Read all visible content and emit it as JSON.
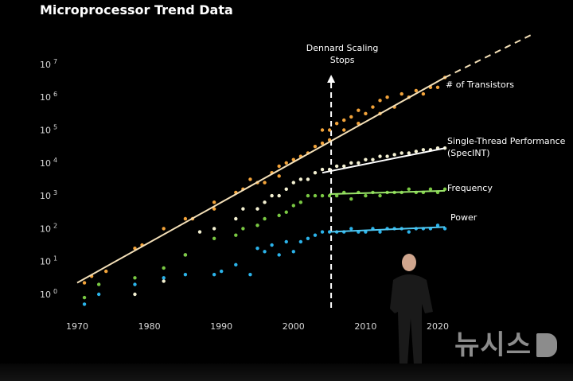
{
  "title": "Microprocessor Trend Data",
  "watermark": "뉴시스",
  "chart_data": {
    "type": "scatter",
    "title": "Microprocessor Trend Data",
    "xlabel": "",
    "ylabel": "",
    "x_ticks": [
      "1970",
      "1980",
      "1990",
      "2000",
      "2010",
      "2020"
    ],
    "y_ticks": [
      {
        "base": "10",
        "exp": "0",
        "value": 1
      },
      {
        "base": "10",
        "exp": "1",
        "value": 10
      },
      {
        "base": "10",
        "exp": "2",
        "value": 100
      },
      {
        "base": "10",
        "exp": "3",
        "value": 1000
      },
      {
        "base": "10",
        "exp": "4",
        "value": 10000
      },
      {
        "base": "10",
        "exp": "5",
        "value": 100000
      },
      {
        "base": "10",
        "exp": "6",
        "value": 1000000
      },
      {
        "base": "10",
        "exp": "7",
        "value": 10000000
      }
    ],
    "y_scale": "log",
    "xlim": [
      1968,
      2024
    ],
    "ylim_log10": [
      -0.4,
      7.8
    ],
    "annotation": {
      "text_lines": [
        "Dennard Scaling",
        "Stops"
      ],
      "x": 2005
    },
    "series": [
      {
        "name": "# of Transistors",
        "label_lines": [
          "# of Transistors"
        ],
        "color": "#f2a33a",
        "points": [
          [
            1971,
            0.35
          ],
          [
            1972,
            0.55
          ],
          [
            1974,
            0.7
          ],
          [
            1978,
            1.4
          ],
          [
            1979,
            1.5
          ],
          [
            1982,
            2.0
          ],
          [
            1985,
            2.3
          ],
          [
            1986,
            2.3
          ],
          [
            1989,
            2.8
          ],
          [
            1989,
            2.6
          ],
          [
            1992,
            3.1
          ],
          [
            1993,
            3.2
          ],
          [
            1994,
            3.5
          ],
          [
            1995,
            3.4
          ],
          [
            1996,
            3.4
          ],
          [
            1997,
            3.7
          ],
          [
            1998,
            3.6
          ],
          [
            1998,
            3.9
          ],
          [
            1999,
            4.0
          ],
          [
            2000,
            4.1
          ],
          [
            2001,
            4.2
          ],
          [
            2002,
            4.3
          ],
          [
            2003,
            4.5
          ],
          [
            2004,
            4.6
          ],
          [
            2004,
            5.0
          ],
          [
            2005,
            4.7
          ],
          [
            2005,
            5.0
          ],
          [
            2006,
            5.2
          ],
          [
            2007,
            5.0
          ],
          [
            2007,
            5.3
          ],
          [
            2008,
            5.4
          ],
          [
            2009,
            5.2
          ],
          [
            2009,
            5.6
          ],
          [
            2010,
            5.5
          ],
          [
            2011,
            5.7
          ],
          [
            2012,
            5.5
          ],
          [
            2012,
            5.9
          ],
          [
            2013,
            6.0
          ],
          [
            2014,
            5.7
          ],
          [
            2015,
            6.1
          ],
          [
            2016,
            6.0
          ],
          [
            2017,
            6.2
          ],
          [
            2018,
            6.1
          ],
          [
            2019,
            6.3
          ],
          [
            2020,
            6.3
          ],
          [
            2021,
            6.6
          ]
        ]
      },
      {
        "name": "Single-Thread Performance (SpecINT)",
        "label_lines": [
          "Single-Thread Performance",
          "(SpecINT)"
        ],
        "color": "#f4f1d2",
        "points": [
          [
            1978,
            0.0
          ],
          [
            1982,
            0.4
          ],
          [
            1985,
            1.2
          ],
          [
            1987,
            1.9
          ],
          [
            1989,
            2.0
          ],
          [
            1992,
            2.3
          ],
          [
            1993,
            2.6
          ],
          [
            1995,
            2.6
          ],
          [
            1996,
            2.8
          ],
          [
            1997,
            3.0
          ],
          [
            1998,
            3.0
          ],
          [
            1999,
            3.2
          ],
          [
            2000,
            3.4
          ],
          [
            2001,
            3.5
          ],
          [
            2002,
            3.5
          ],
          [
            2003,
            3.7
          ],
          [
            2004,
            3.8
          ],
          [
            2005,
            3.8
          ],
          [
            2006,
            3.9
          ],
          [
            2007,
            3.9
          ],
          [
            2008,
            4.0
          ],
          [
            2009,
            4.0
          ],
          [
            2010,
            4.1
          ],
          [
            2011,
            4.1
          ],
          [
            2012,
            4.2
          ],
          [
            2013,
            4.2
          ],
          [
            2014,
            4.25
          ],
          [
            2015,
            4.3
          ],
          [
            2016,
            4.3
          ],
          [
            2017,
            4.35
          ],
          [
            2018,
            4.4
          ],
          [
            2019,
            4.4
          ],
          [
            2020,
            4.45
          ],
          [
            2021,
            4.45
          ]
        ]
      },
      {
        "name": "Frequency",
        "label_lines": [
          "Frequency"
        ],
        "color": "#7ac943",
        "points": [
          [
            1971,
            -0.1
          ],
          [
            1973,
            0.3
          ],
          [
            1978,
            0.5
          ],
          [
            1982,
            0.8
          ],
          [
            1985,
            1.2
          ],
          [
            1989,
            1.7
          ],
          [
            1992,
            1.8
          ],
          [
            1993,
            2.0
          ],
          [
            1995,
            2.1
          ],
          [
            1996,
            2.3
          ],
          [
            1998,
            2.4
          ],
          [
            1999,
            2.5
          ],
          [
            2000,
            2.7
          ],
          [
            2001,
            2.8
          ],
          [
            2002,
            3.0
          ],
          [
            2003,
            3.0
          ],
          [
            2004,
            3.0
          ],
          [
            2005,
            3.0
          ],
          [
            2006,
            3.0
          ],
          [
            2007,
            3.1
          ],
          [
            2008,
            2.9
          ],
          [
            2009,
            3.1
          ],
          [
            2010,
            3.0
          ],
          [
            2011,
            3.1
          ],
          [
            2012,
            3.0
          ],
          [
            2013,
            3.1
          ],
          [
            2014,
            3.1
          ],
          [
            2015,
            3.1
          ],
          [
            2016,
            3.2
          ],
          [
            2017,
            3.1
          ],
          [
            2018,
            3.1
          ],
          [
            2019,
            3.2
          ],
          [
            2020,
            3.1
          ],
          [
            2021,
            3.2
          ]
        ]
      },
      {
        "name": "Power",
        "label_lines": [
          "Power"
        ],
        "color": "#2bb3ea",
        "points": [
          [
            1971,
            -0.3
          ],
          [
            1973,
            0.0
          ],
          [
            1978,
            0.3
          ],
          [
            1982,
            0.5
          ],
          [
            1985,
            0.6
          ],
          [
            1989,
            0.6
          ],
          [
            1990,
            0.7
          ],
          [
            1992,
            0.9
          ],
          [
            1994,
            0.6
          ],
          [
            1995,
            1.4
          ],
          [
            1996,
            1.3
          ],
          [
            1997,
            1.5
          ],
          [
            1998,
            1.2
          ],
          [
            1999,
            1.6
          ],
          [
            2000,
            1.3
          ],
          [
            2001,
            1.6
          ],
          [
            2002,
            1.7
          ],
          [
            2003,
            1.8
          ],
          [
            2004,
            1.9
          ],
          [
            2005,
            1.9
          ],
          [
            2006,
            1.9
          ],
          [
            2007,
            1.9
          ],
          [
            2008,
            2.0
          ],
          [
            2009,
            1.9
          ],
          [
            2010,
            1.9
          ],
          [
            2011,
            2.0
          ],
          [
            2012,
            1.9
          ],
          [
            2013,
            2.0
          ],
          [
            2014,
            2.0
          ],
          [
            2015,
            2.0
          ],
          [
            2016,
            1.9
          ],
          [
            2017,
            2.0
          ],
          [
            2018,
            2.0
          ],
          [
            2019,
            2.0
          ],
          [
            2020,
            2.1
          ],
          [
            2021,
            2.0
          ]
        ]
      }
    ],
    "trend_lines": [
      {
        "series": "# of Transistors",
        "color": "#f4e0b8",
        "from": [
          1970,
          0.35
        ],
        "to": [
          2021,
          6.6
        ],
        "dashed_to": [
          2033,
          7.9
        ]
      },
      {
        "series": "Single-Thread Performance (SpecINT)",
        "color": "#ffffff",
        "from": [
          2004,
          3.7
        ],
        "to": [
          2021,
          4.45
        ]
      },
      {
        "series": "Frequency",
        "color": "#9be56a",
        "from": [
          2005,
          3.05
        ],
        "to": [
          2021,
          3.15
        ]
      },
      {
        "series": "Power",
        "color": "#4ec7f2",
        "from": [
          2005,
          1.9
        ],
        "to": [
          2021,
          2.05
        ]
      }
    ]
  }
}
